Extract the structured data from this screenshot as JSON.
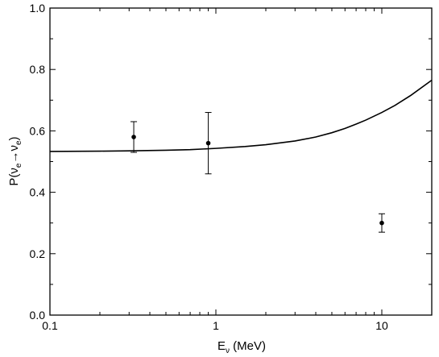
{
  "chart_data": {
    "type": "scatter",
    "xscale": "log",
    "xlim": [
      0.1,
      20
    ],
    "ylim": [
      0.0,
      1.0
    ],
    "xlabel": {
      "main": "E",
      "sub": "ν",
      "unit": " (MeV)"
    },
    "ylabel": {
      "pre": "P(ν",
      "sub1": "e",
      "arrow": "→",
      "mid": "ν",
      "sub2": "e",
      "post": ")"
    },
    "x_ticks": [
      {
        "value": 0.1,
        "label": "0.1"
      },
      {
        "value": 1,
        "label": "1"
      },
      {
        "value": 10,
        "label": "10"
      }
    ],
    "y_ticks": [
      {
        "value": 0.0,
        "label": "0.0"
      },
      {
        "value": 0.2,
        "label": "0.2"
      },
      {
        "value": 0.4,
        "label": "0.4"
      },
      {
        "value": 0.6,
        "label": "0.6"
      },
      {
        "value": 0.8,
        "label": "0.8"
      },
      {
        "value": 1.0,
        "label": "1.0"
      }
    ],
    "grid": false,
    "series": [
      {
        "type": "line",
        "color": "#000000",
        "x": [
          0.1,
          0.2,
          0.3,
          0.5,
          0.7,
          1,
          1.5,
          2,
          3,
          4,
          5,
          6,
          7,
          8,
          10,
          12,
          15,
          20
        ],
        "y": [
          0.533,
          0.534,
          0.535,
          0.537,
          0.539,
          0.543,
          0.549,
          0.555,
          0.567,
          0.58,
          0.594,
          0.608,
          0.622,
          0.635,
          0.66,
          0.683,
          0.716,
          0.765
        ]
      },
      {
        "type": "scatter_errorbar",
        "color": "#000000",
        "points": [
          {
            "x": 0.32,
            "y": 0.58,
            "yerr_low": 0.05,
            "yerr_high": 0.05
          },
          {
            "x": 0.9,
            "y": 0.56,
            "yerr_low": 0.1,
            "yerr_high": 0.1
          },
          {
            "x": 10,
            "y": 0.3,
            "yerr_low": 0.03,
            "yerr_high": 0.03
          }
        ]
      }
    ]
  }
}
